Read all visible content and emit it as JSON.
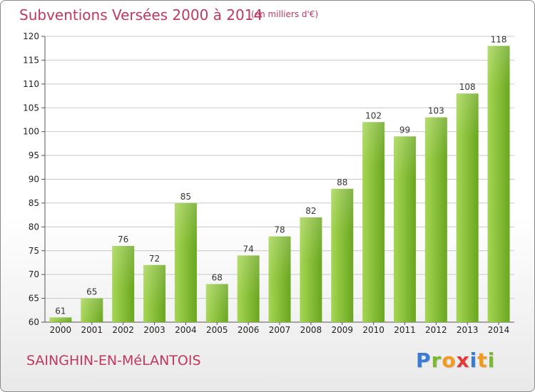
{
  "header": {
    "title": "Subventions Versées 2000 à 2014",
    "unit": "(en milliers d'€)"
  },
  "footer": {
    "commune": "SAINGHIN-EN-MéLANTOIS",
    "logo_letters": [
      "P",
      "r",
      "o",
      "x",
      "i",
      "t",
      "i"
    ]
  },
  "colors": {
    "title": "#c0385e",
    "bar_light": "#a6d653",
    "bar_dark": "#6aa61f",
    "grid": "#c8c8c8"
  },
  "chart_data": {
    "type": "bar",
    "title": "Subventions Versées 2000 à 2014",
    "xlabel": "",
    "ylabel": "",
    "categories": [
      "2000",
      "2001",
      "2002",
      "2003",
      "2004",
      "2005",
      "2006",
      "2007",
      "2008",
      "2009",
      "2010",
      "2011",
      "2012",
      "2013",
      "2014"
    ],
    "values": [
      61,
      65,
      76,
      72,
      85,
      68,
      74,
      78,
      82,
      88,
      102,
      99,
      103,
      108,
      118
    ],
    "ylim": [
      60,
      120
    ],
    "yticks": [
      60,
      65,
      70,
      75,
      80,
      85,
      90,
      95,
      100,
      105,
      110,
      115,
      120
    ],
    "grid": true
  }
}
